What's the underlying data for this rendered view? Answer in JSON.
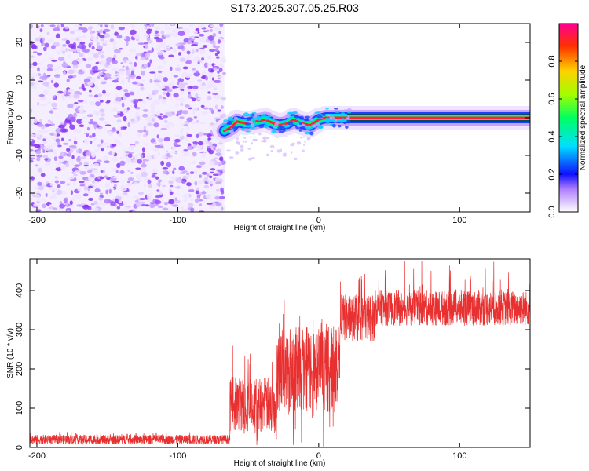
{
  "title": "S173.2025.307.05.25.R03",
  "colors": {
    "snr_line": "#e83030",
    "noise": "#9a30ff",
    "axes": "#000000",
    "background": "#ffffff"
  },
  "chart_data": [
    {
      "type": "heatmap",
      "name": "spectrogram",
      "xlabel": "Height of straight line (km)",
      "ylabel": "Frequency (Hz)",
      "xlim": [
        -205,
        150
      ],
      "ylim": [
        -25,
        25
      ],
      "xticks": [
        -200,
        -100,
        0,
        100
      ],
      "yticks": [
        -20,
        -10,
        0,
        10,
        20
      ],
      "noise_region_x": [
        -205,
        -67
      ],
      "signal_track": {
        "x": [
          -67,
          -62,
          -58,
          -52,
          -45,
          -38,
          -32,
          -28,
          -22,
          -18,
          -12,
          -6,
          0,
          5,
          12,
          20,
          30,
          60,
          100,
          150
        ],
        "y": [
          -3.5,
          -2.5,
          -1,
          -1.5,
          -1,
          -0.5,
          -1.5,
          -2,
          -1.5,
          -0.5,
          -1.5,
          -2,
          -0.5,
          0,
          0,
          0,
          0,
          0,
          0,
          0
        ]
      },
      "colorbar": {
        "label": "Normalized spectral amplitude",
        "range": [
          0,
          1
        ],
        "ticks": [
          "0.0",
          "0.2",
          "0.4",
          "0.6",
          "0.8"
        ]
      }
    },
    {
      "type": "line",
      "name": "snr",
      "xlabel": "Height of straight line (km)",
      "ylabel": "SNR (10 * v/v)",
      "xlim": [
        -205,
        150
      ],
      "ylim": [
        0,
        480
      ],
      "xticks": [
        -200,
        -100,
        0,
        100
      ],
      "yticks": [
        0,
        100,
        200,
        300,
        400
      ],
      "segments": [
        {
          "x_range": [
            -205,
            -63
          ],
          "baseline": 20,
          "noise": 12,
          "max_spike": 20
        },
        {
          "x_range": [
            -63,
            -30
          ],
          "baseline": 110,
          "noise": 70,
          "max_spike": 200
        },
        {
          "x_range": [
            -30,
            15
          ],
          "baseline": 200,
          "noise": 110,
          "max_spike": 190
        },
        {
          "x_range": [
            15,
            40
          ],
          "baseline": 330,
          "noise": 60,
          "max_spike": 120
        },
        {
          "x_range": [
            40,
            150
          ],
          "baseline": 355,
          "noise": 45,
          "max_spike": 120
        }
      ]
    }
  ]
}
